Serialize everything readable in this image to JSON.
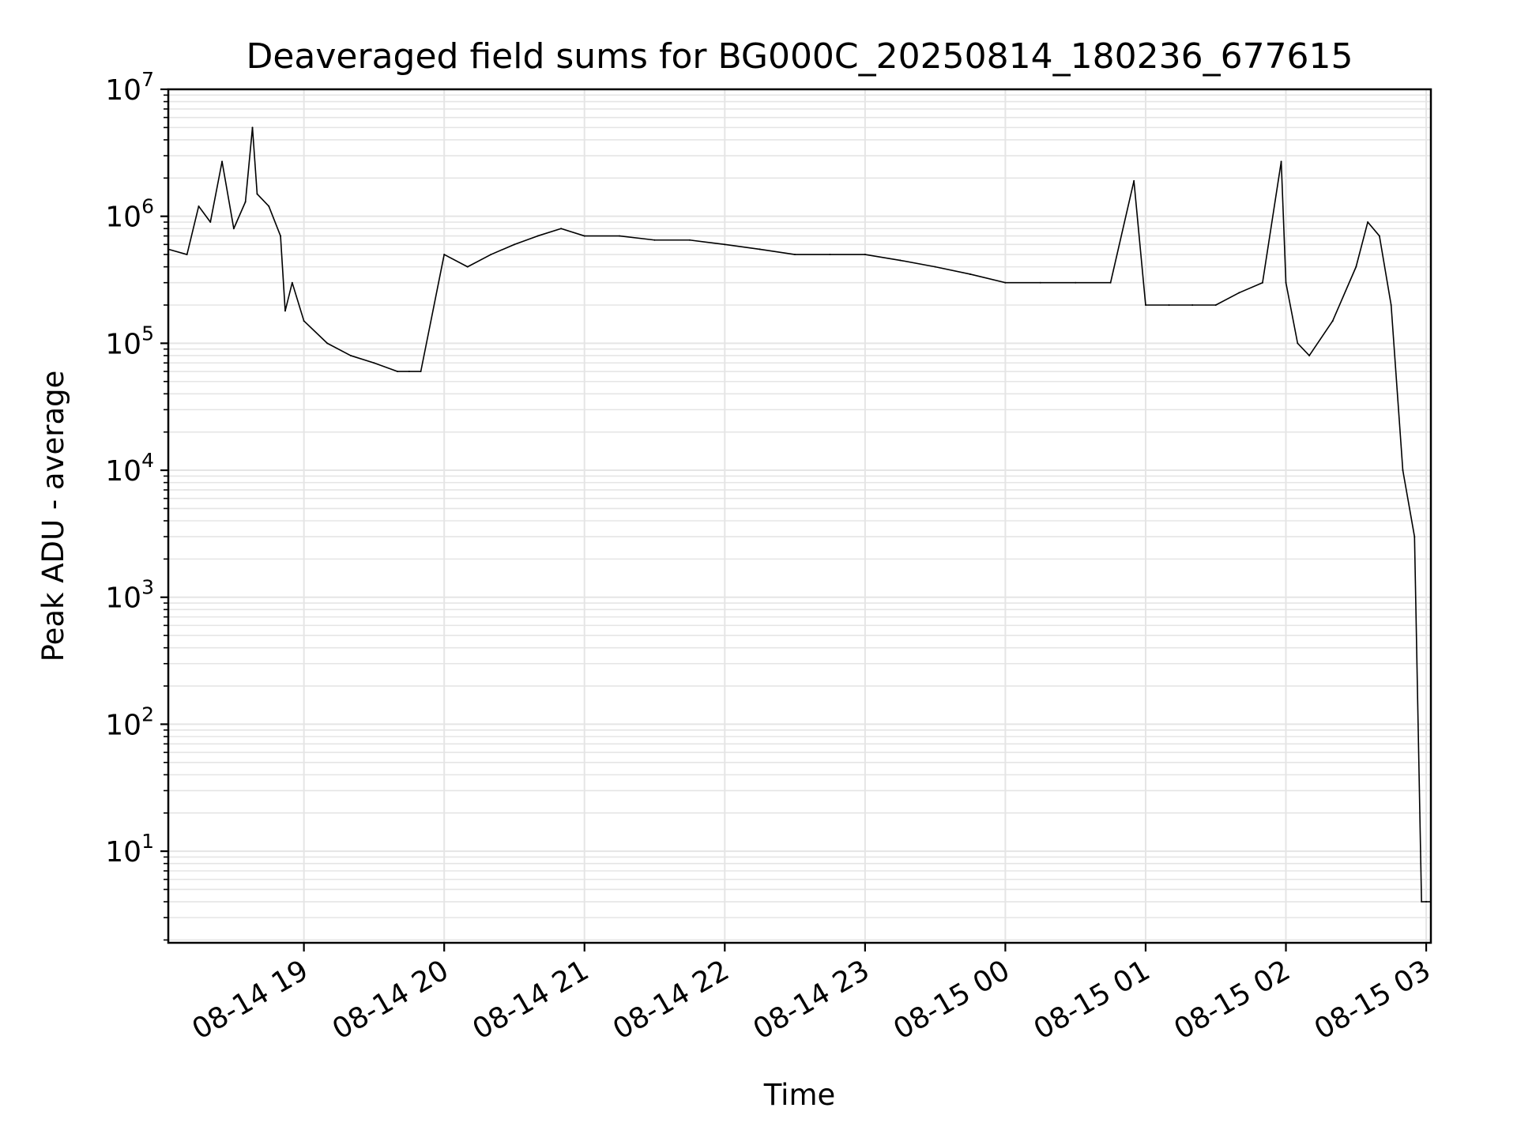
{
  "chart_data": {
    "type": "line",
    "title": "Deaveraged field sums for BG000C_20250814_180236_677615",
    "xlabel": "Time",
    "ylabel": "Peak ADU - average",
    "y_scale": "log",
    "ylim": [
      1.9,
      10000000
    ],
    "xlim": [
      "2025-08-14 18:02",
      "2025-08-15 03:02"
    ],
    "grid": true,
    "line_color": "#000000",
    "grid_color": "#e5e5e5",
    "x_ticks": [
      {
        "value": "2025-08-14 19:00",
        "label": "08-14 19"
      },
      {
        "value": "2025-08-14 20:00",
        "label": "08-14 20"
      },
      {
        "value": "2025-08-14 21:00",
        "label": "08-14 21"
      },
      {
        "value": "2025-08-14 22:00",
        "label": "08-14 22"
      },
      {
        "value": "2025-08-14 23:00",
        "label": "08-14 23"
      },
      {
        "value": "2025-08-15 00:00",
        "label": "08-15 00"
      },
      {
        "value": "2025-08-15 01:00",
        "label": "08-15 01"
      },
      {
        "value": "2025-08-15 02:00",
        "label": "08-15 02"
      },
      {
        "value": "2025-08-15 03:00",
        "label": "08-15 03"
      }
    ],
    "y_ticks": [
      {
        "value": 10,
        "base": "10",
        "exp": "1"
      },
      {
        "value": 100,
        "base": "10",
        "exp": "2"
      },
      {
        "value": 1000,
        "base": "10",
        "exp": "3"
      },
      {
        "value": 10000,
        "base": "10",
        "exp": "4"
      },
      {
        "value": 100000,
        "base": "10",
        "exp": "5"
      },
      {
        "value": 1000000,
        "base": "10",
        "exp": "6"
      },
      {
        "value": 10000000,
        "base": "10",
        "exp": "7"
      }
    ],
    "series": [
      {
        "x": [
          "2025-08-14 18:02",
          "2025-08-14 18:10",
          "2025-08-14 18:15",
          "2025-08-14 18:20",
          "2025-08-14 18:25",
          "2025-08-14 18:30",
          "2025-08-14 18:35",
          "2025-08-14 18:38",
          "2025-08-14 18:40",
          "2025-08-14 18:45",
          "2025-08-14 18:50",
          "2025-08-14 18:52",
          "2025-08-14 18:55",
          "2025-08-14 19:00",
          "2025-08-14 19:10",
          "2025-08-14 19:20",
          "2025-08-14 19:30",
          "2025-08-14 19:40",
          "2025-08-14 19:45",
          "2025-08-14 19:50",
          "2025-08-14 20:00",
          "2025-08-14 20:10",
          "2025-08-14 20:20",
          "2025-08-14 20:30",
          "2025-08-14 20:40",
          "2025-08-14 20:50",
          "2025-08-14 21:00",
          "2025-08-14 21:15",
          "2025-08-14 21:30",
          "2025-08-14 21:45",
          "2025-08-14 22:00",
          "2025-08-14 22:15",
          "2025-08-14 22:30",
          "2025-08-14 22:45",
          "2025-08-14 23:00",
          "2025-08-14 23:15",
          "2025-08-14 23:30",
          "2025-08-14 23:45",
          "2025-08-15 00:00",
          "2025-08-15 00:15",
          "2025-08-15 00:30",
          "2025-08-15 00:45",
          "2025-08-15 00:55",
          "2025-08-15 01:00",
          "2025-08-15 01:10",
          "2025-08-15 01:20",
          "2025-08-15 01:30",
          "2025-08-15 01:40",
          "2025-08-15 01:50",
          "2025-08-15 01:58",
          "2025-08-15 02:00",
          "2025-08-15 02:05",
          "2025-08-15 02:10",
          "2025-08-15 02:20",
          "2025-08-15 02:30",
          "2025-08-15 02:35",
          "2025-08-15 02:40",
          "2025-08-15 02:45",
          "2025-08-15 02:50",
          "2025-08-15 02:55",
          "2025-08-15 02:58",
          "2025-08-15 03:00",
          "2025-08-15 03:02"
        ],
        "y": [
          550000,
          500000,
          1200000,
          900000,
          2700000,
          800000,
          1300000,
          5000000,
          1500000,
          1200000,
          700000,
          180000,
          300000,
          150000,
          100000,
          80000,
          70000,
          60000,
          60000,
          60000,
          500000,
          400000,
          500000,
          600000,
          700000,
          800000,
          700000,
          700000,
          650000,
          650000,
          600000,
          550000,
          500000,
          500000,
          500000,
          450000,
          400000,
          350000,
          300000,
          300000,
          300000,
          300000,
          1900000,
          200000,
          200000,
          200000,
          200000,
          250000,
          300000,
          2700000,
          300000,
          100000,
          80000,
          150000,
          400000,
          900000,
          700000,
          200000,
          10000,
          3000,
          4,
          4,
          4
        ]
      }
    ]
  }
}
